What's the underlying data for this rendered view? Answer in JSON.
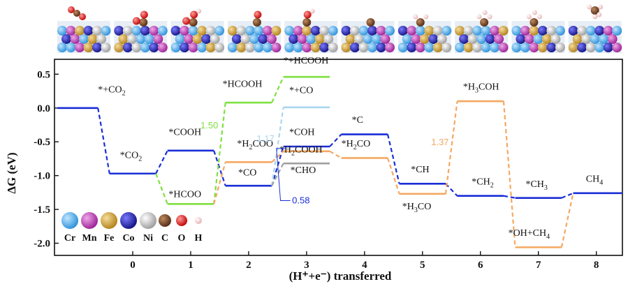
{
  "chart_data": {
    "type": "line",
    "xlabel": "(H⁺+e⁻) transferred",
    "ylabel": "ΔG (eV)",
    "xlim": [
      -1.35,
      8.45
    ],
    "ylim": [
      -2.18,
      0.72
    ],
    "x_ticks": [
      0,
      1,
      2,
      3,
      4,
      5,
      6,
      7,
      8
    ],
    "y_ticks": [
      0.5,
      0.0,
      -0.5,
      -1.0,
      -1.5,
      -2.0
    ],
    "y_tick_labels": [
      "0.5",
      "0.0",
      "-0.5",
      "-1.0",
      "-1.5",
      "-2.0"
    ],
    "series": [
      {
        "color": "#1a2ed6",
        "levels": [
          {
            "x": [
              -1.3,
              -0.6
            ],
            "y": 0.0
          },
          {
            "x": [
              -0.4,
              0.4
            ],
            "y": -0.97
          },
          {
            "x": [
              0.6,
              1.4
            ],
            "y": -0.63
          },
          {
            "x": [
              1.6,
              2.4
            ],
            "y": -1.15
          },
          {
            "x": [
              2.6,
              3.4
            ],
            "y": -0.57
          },
          {
            "x": [
              3.6,
              4.4
            ],
            "y": -0.39
          },
          {
            "x": [
              4.6,
              5.4
            ],
            "y": -1.12
          },
          {
            "x": [
              5.6,
              6.4
            ],
            "y": -1.3
          },
          {
            "x": [
              6.6,
              7.4
            ],
            "y": -1.33
          },
          {
            "x": [
              7.6,
              8.45
            ],
            "y": -1.26
          }
        ]
      },
      {
        "color": "#7fe040",
        "levels": [
          {
            "x": [
              0.6,
              1.4
            ],
            "y": -1.42
          },
          {
            "x": [
              1.6,
              2.4
            ],
            "y": 0.08
          },
          {
            "x": [
              2.6,
              3.4
            ],
            "y": 0.46
          }
        ],
        "links": [
          [
            -0.97,
            -1.42,
            0.4,
            0.6
          ]
        ]
      },
      {
        "color": "#f5a862",
        "levels": [
          {
            "x": [
              1.6,
              2.4
            ],
            "y": -0.8
          },
          {
            "x": [
              2.6,
              3.4
            ],
            "y": -0.64
          },
          {
            "x": [
              3.6,
              4.4
            ],
            "y": -0.74
          },
          {
            "x": [
              4.6,
              5.4
            ],
            "y": -1.27
          },
          {
            "x": [
              5.6,
              6.4
            ],
            "y": 0.1
          },
          {
            "x": [
              6.6,
              7.4
            ],
            "y": -2.06
          }
        ],
        "links": [
          [
            -1.42,
            -0.8,
            1.4,
            1.6
          ],
          [
            -2.06,
            -1.26,
            7.4,
            7.6
          ]
        ]
      },
      {
        "color": "#a9d6ee",
        "levels": [
          {
            "x": [
              2.6,
              3.4
            ],
            "y": 0.01
          }
        ],
        "links": [
          [
            -1.15,
            0.01,
            2.4,
            2.6
          ]
        ]
      },
      {
        "color": "#a0a0a0",
        "levels": [
          {
            "x": [
              2.6,
              3.4
            ],
            "y": -0.82
          }
        ],
        "links": [
          [
            -1.15,
            -0.82,
            2.4,
            2.6
          ]
        ]
      }
    ],
    "state_labels": [
      {
        "text": "*+CO",
        "sub": "2",
        "x": -0.6,
        "y": 0.23
      },
      {
        "text": "*CO",
        "sub": "2",
        "x": -0.22,
        "y": -0.74
      },
      {
        "text": "*COOH",
        "x": 0.62,
        "y": -0.4
      },
      {
        "text": "*HCOO",
        "x": 0.62,
        "y": -1.32
      },
      {
        "text": "*HCOOH",
        "x": 1.55,
        "y": 0.31
      },
      {
        "text": "*H",
        "sub": "2",
        "after": "COO",
        "x": 1.8,
        "y": -0.57
      },
      {
        "text": "*CO",
        "x": 1.82,
        "y": -1.0
      },
      {
        "text": "*+HCOOH",
        "x": 2.6,
        "y": 0.66
      },
      {
        "text": "*+CO",
        "x": 2.7,
        "y": 0.22
      },
      {
        "text": "*COH",
        "x": 2.7,
        "y": -0.4
      },
      {
        "text": "*H",
        "sub": "2",
        "after": "COOH",
        "x": 2.53,
        "y": -0.66
      },
      {
        "text": "*CHO",
        "x": 2.72,
        "y": -0.96
      },
      {
        "text": "*C",
        "x": 3.78,
        "y": -0.22
      },
      {
        "text": "*H",
        "sub": "2",
        "after": "CO",
        "x": 3.6,
        "y": -0.57
      },
      {
        "text": "*CH",
        "x": 4.8,
        "y": -0.95
      },
      {
        "text": "*H",
        "sub": "3",
        "after": "CO",
        "x": 4.65,
        "y": -1.5
      },
      {
        "text": "*H",
        "sub": "3",
        "after": "COH",
        "x": 5.7,
        "y": 0.27
      },
      {
        "text": "*CH",
        "sub": "2",
        "x": 5.85,
        "y": -1.13
      },
      {
        "text": "*CH",
        "sub": "3",
        "x": 6.78,
        "y": -1.17
      },
      {
        "text": "*OH+CH",
        "sub": "4",
        "x": 6.48,
        "y": -1.89
      },
      {
        "text": "CH",
        "sub": "4",
        "x": 7.82,
        "y": -1.09
      }
    ],
    "annotations": [
      {
        "text": "1.50",
        "x": 1.17,
        "y": -0.3,
        "color": "#7fe040"
      },
      {
        "text": "1.17",
        "x": 2.14,
        "y": -0.5,
        "color": "#a9d6ee"
      },
      {
        "text": "0.58",
        "x": 2.75,
        "y": -1.41,
        "color": "#1a2ed6"
      },
      {
        "text": "1.37",
        "x": 5.15,
        "y": -0.55,
        "color": "#f5a862"
      }
    ],
    "legend": {
      "placement": "bottom-left",
      "items": [
        {
          "label": "Cr",
          "color": "#3a9fe8"
        },
        {
          "label": "Mn",
          "color": "#b02fa8"
        },
        {
          "label": "Fe",
          "color": "#c9962a"
        },
        {
          "label": "Co",
          "color": "#1a1aa0"
        },
        {
          "label": "Ni",
          "color": "#bdbdbd"
        },
        {
          "label": "C",
          "color": "#6b3a1e"
        },
        {
          "label": "O",
          "color": "#e01010"
        },
        {
          "label": "H",
          "color": "#f4cccc"
        }
      ]
    }
  }
}
